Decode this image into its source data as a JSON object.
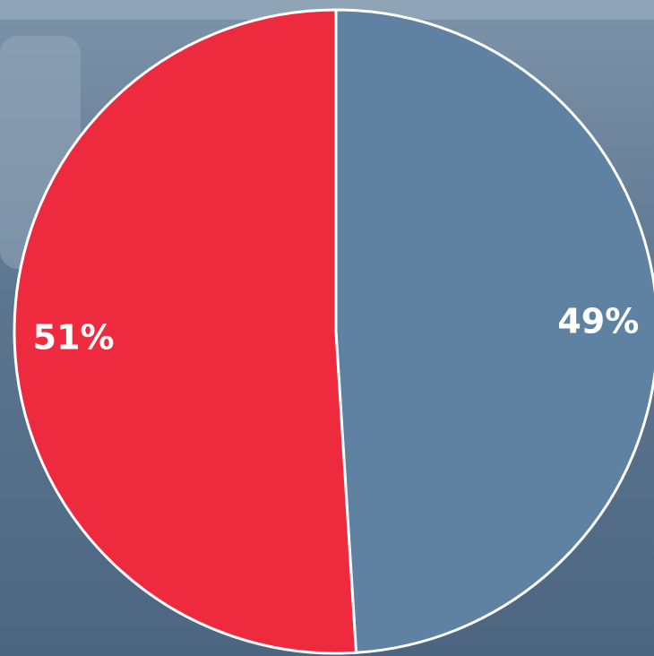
{
  "chart_data": {
    "type": "pie",
    "values": [
      49,
      51
    ],
    "value_labels": [
      "49%",
      "51%"
    ],
    "colors": [
      "#5f82a3",
      "#ee2a3f"
    ],
    "start_angle": 0,
    "direction": "clockwise"
  }
}
